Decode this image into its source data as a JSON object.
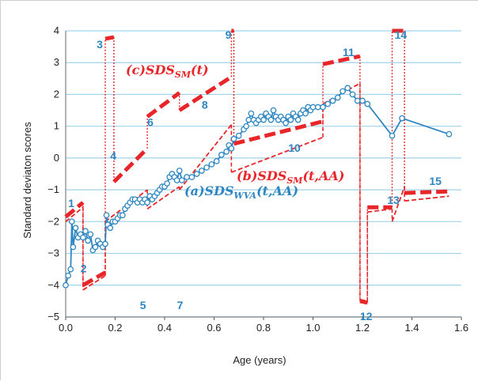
{
  "chart_data": {
    "type": "line",
    "title": "",
    "xlabel": "Age (years)",
    "ylabel": "Standard deviaton scores",
    "xlim": [
      0,
      1.6
    ],
    "ylim": [
      -5,
      4
    ],
    "xticks": [
      "0.0",
      "0.2",
      "0.4",
      "0.6",
      "0.8",
      "1.0",
      "1.2",
      "1.4",
      "1.6"
    ],
    "yticks": [
      "−5",
      "−4",
      "−3",
      "−2",
      "−1",
      "0",
      "1",
      "2",
      "3",
      "4"
    ],
    "grid": true,
    "annotations": {
      "wva": "(a)SDS",
      "wva_sub": "WVA",
      "wva_args": "(t,AA)",
      "sm_aa": "(b)SDS",
      "sm_aa_sub": "SM",
      "sm_aa_args": "(t,AA)",
      "sm_t": "(c)SDS",
      "sm_t_sub": "SM",
      "sm_t_args": "(t)"
    },
    "segment_labels": [
      "1",
      "2",
      "3",
      "4",
      "5",
      "6",
      "7",
      "8",
      "9",
      "10",
      "11",
      "12",
      "13",
      "14",
      "15"
    ],
    "series": [
      {
        "name": "(a)SDS_WVA(t,AA)",
        "color": "#2e86c1",
        "points": [
          [
            0.0,
            -4.0
          ],
          [
            0.01,
            -3.7
          ],
          [
            0.02,
            -3.5
          ],
          [
            0.025,
            -2.0
          ],
          [
            0.03,
            -2.8
          ],
          [
            0.04,
            -2.2
          ],
          [
            0.05,
            -2.5
          ],
          [
            0.06,
            -2.4
          ],
          [
            0.07,
            -2.5
          ],
          [
            0.08,
            -2.3
          ],
          [
            0.09,
            -2.6
          ],
          [
            0.1,
            -2.4
          ],
          [
            0.11,
            -2.9
          ],
          [
            0.12,
            -2.8
          ],
          [
            0.13,
            -2.6
          ],
          [
            0.14,
            -2.7
          ],
          [
            0.15,
            -2.8
          ],
          [
            0.16,
            -2.7
          ],
          [
            0.165,
            -1.8
          ],
          [
            0.17,
            -2.1
          ],
          [
            0.18,
            -2.2
          ],
          [
            0.19,
            -2.0
          ],
          [
            0.2,
            -2.0
          ],
          [
            0.21,
            -1.9
          ],
          [
            0.22,
            -1.8
          ],
          [
            0.23,
            -1.8
          ],
          [
            0.24,
            -1.6
          ],
          [
            0.25,
            -1.5
          ],
          [
            0.26,
            -1.4
          ],
          [
            0.27,
            -1.3
          ],
          [
            0.28,
            -1.3
          ],
          [
            0.29,
            -1.4
          ],
          [
            0.3,
            -1.3
          ],
          [
            0.31,
            -1.4
          ],
          [
            0.32,
            -1.3
          ],
          [
            0.33,
            -1.4
          ],
          [
            0.34,
            -1.2
          ],
          [
            0.35,
            -1.3
          ],
          [
            0.36,
            -1.2
          ],
          [
            0.37,
            -1.1
          ],
          [
            0.38,
            -1.0
          ],
          [
            0.39,
            -0.9
          ],
          [
            0.4,
            -0.9
          ],
          [
            0.41,
            -0.8
          ],
          [
            0.42,
            -0.6
          ],
          [
            0.43,
            -0.5
          ],
          [
            0.44,
            -0.6
          ],
          [
            0.45,
            -0.7
          ],
          [
            0.46,
            -0.4
          ],
          [
            0.47,
            -0.7
          ],
          [
            0.49,
            -0.6
          ],
          [
            0.51,
            -0.6
          ],
          [
            0.53,
            -0.5
          ],
          [
            0.55,
            -0.4
          ],
          [
            0.57,
            -0.3
          ],
          [
            0.59,
            -0.2
          ],
          [
            0.61,
            -0.1
          ],
          [
            0.63,
            0.1
          ],
          [
            0.65,
            0.2
          ],
          [
            0.66,
            0.4
          ],
          [
            0.67,
            0.3
          ],
          [
            0.68,
            0.6
          ],
          [
            0.7,
            0.7
          ],
          [
            0.72,
            0.9
          ],
          [
            0.73,
            1.0
          ],
          [
            0.74,
            1.2
          ],
          [
            0.75,
            1.4
          ],
          [
            0.76,
            1.2
          ],
          [
            0.77,
            1.1
          ],
          [
            0.78,
            1.2
          ],
          [
            0.79,
            1.3
          ],
          [
            0.8,
            1.2
          ],
          [
            0.81,
            1.4
          ],
          [
            0.82,
            1.3
          ],
          [
            0.83,
            1.2
          ],
          [
            0.84,
            1.5
          ],
          [
            0.85,
            1.3
          ],
          [
            0.86,
            1.2
          ],
          [
            0.87,
            1.3
          ],
          [
            0.88,
            1.2
          ],
          [
            0.89,
            1.1
          ],
          [
            0.9,
            1.3
          ],
          [
            0.91,
            1.2
          ],
          [
            0.92,
            1.4
          ],
          [
            0.93,
            1.3
          ],
          [
            0.94,
            1.2
          ],
          [
            0.95,
            1.4
          ],
          [
            0.96,
            1.5
          ],
          [
            0.97,
            1.4
          ],
          [
            0.98,
            1.6
          ],
          [
            0.99,
            1.5
          ],
          [
            1.0,
            1.6
          ],
          [
            1.02,
            1.6
          ],
          [
            1.04,
            1.6
          ],
          [
            1.06,
            1.7
          ],
          [
            1.08,
            1.8
          ],
          [
            1.1,
            1.9
          ],
          [
            1.12,
            2.1
          ],
          [
            1.14,
            2.2
          ],
          [
            1.16,
            2.0
          ],
          [
            1.18,
            1.8
          ],
          [
            1.2,
            1.8
          ],
          [
            1.22,
            1.7
          ],
          [
            1.32,
            0.7
          ],
          [
            1.36,
            1.25
          ],
          [
            1.55,
            0.75
          ]
        ]
      },
      {
        "name": "(b)SDS_SM(t,AA)",
        "color": "#e8262a",
        "segments": [
          [
            [
              0.0,
              -2.0
            ],
            [
              0.07,
              -1.55
            ]
          ],
          [
            [
              0.07,
              -4.15
            ],
            [
              0.16,
              -3.7
            ]
          ],
          [
            [
              0.16,
              -2.0
            ],
            [
              0.33,
              -1.0
            ]
          ],
          [
            [
              0.33,
              -1.6
            ],
            [
              0.46,
              -0.9
            ]
          ],
          [
            [
              0.46,
              -1.0
            ],
            [
              0.67,
              1.05
            ]
          ],
          [
            [
              0.67,
              -0.45
            ],
            [
              1.04,
              0.65
            ]
          ],
          [
            [
              1.04,
              1.7
            ],
            [
              1.19,
              2.35
            ]
          ],
          [
            [
              1.19,
              -4.45
            ],
            [
              1.22,
              -4.5
            ]
          ],
          [
            [
              1.22,
              -1.7
            ],
            [
              1.32,
              -1.6
            ]
          ],
          [
            [
              1.32,
              -2.0
            ],
            [
              1.37,
              -0.9
            ]
          ],
          [
            [
              1.37,
              -1.35
            ],
            [
              1.55,
              -1.2
            ]
          ]
        ]
      },
      {
        "name": "(c)SDS_SM(t)",
        "color": "#e8262a",
        "segments": [
          [
            [
              0.0,
              -1.85
            ],
            [
              0.07,
              -1.4
            ]
          ],
          [
            [
              0.07,
              -4.0
            ],
            [
              0.16,
              -3.6
            ]
          ],
          [
            [
              0.16,
              3.75
            ],
            [
              0.195,
              3.8
            ]
          ],
          [
            [
              0.195,
              -0.75
            ],
            [
              0.33,
              0.3
            ]
          ],
          [
            [
              0.33,
              1.3
            ],
            [
              0.46,
              2.05
            ]
          ],
          [
            [
              0.46,
              1.5
            ],
            [
              0.67,
              2.55
            ]
          ],
          [
            [
              0.67,
              4.0
            ],
            [
              0.68,
              4.0
            ]
          ],
          [
            [
              0.68,
              0.45
            ],
            [
              1.04,
              1.15
            ]
          ],
          [
            [
              1.04,
              2.95
            ],
            [
              1.19,
              3.2
            ]
          ],
          [
            [
              1.19,
              -4.5
            ],
            [
              1.22,
              -4.55
            ]
          ],
          [
            [
              1.22,
              -1.55
            ],
            [
              1.32,
              -1.55
            ]
          ],
          [
            [
              1.32,
              4.0
            ],
            [
              1.37,
              4.0
            ]
          ],
          [
            [
              1.37,
              -1.1
            ],
            [
              1.55,
              -1.05
            ]
          ]
        ]
      }
    ]
  }
}
